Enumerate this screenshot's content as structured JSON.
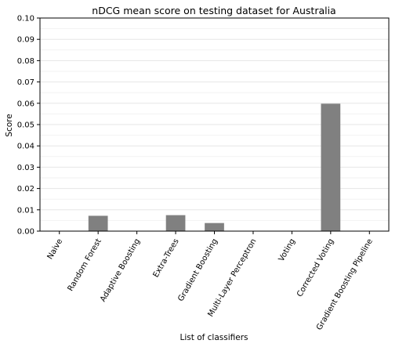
{
  "chart_data": {
    "type": "bar",
    "title": "nDCG mean score on testing dataset for Australia",
    "xlabel": "List of classifiers",
    "ylabel": "Score",
    "categories": [
      "Naive",
      "Random Forest",
      "Adaptive Boosting",
      "Extra-Trees",
      "Gradient Boosting",
      "Multi-Layer Perceptron",
      "Voting",
      "Corrected Voting",
      "Gradient Boosting Pipeline"
    ],
    "values": [
      0.0,
      0.0072,
      0.0,
      0.0075,
      0.0038,
      0.0,
      0.0,
      0.0598,
      0.0
    ],
    "ylim": [
      0,
      0.1
    ],
    "yticks": [
      "0.00",
      "0.01",
      "0.02",
      "0.03",
      "0.04",
      "0.05",
      "0.06",
      "0.07",
      "0.08",
      "0.09",
      "0.10"
    ],
    "grid": "horizontal",
    "bar_color": "#808080",
    "grid_color": "#e6e6e6"
  }
}
